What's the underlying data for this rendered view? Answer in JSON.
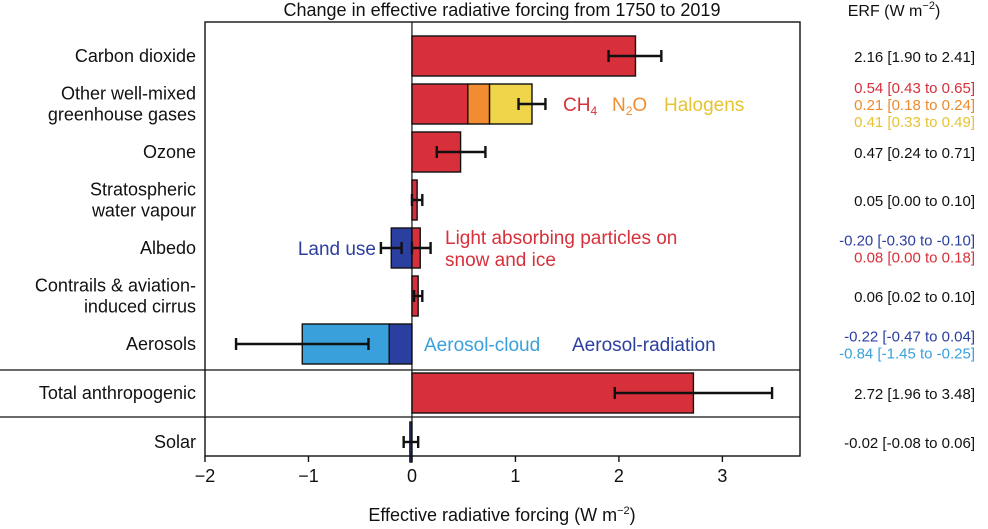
{
  "chart_data": {
    "type": "bar",
    "orientation": "horizontal",
    "title": "Change in effective radiative forcing from 1750 to 2019",
    "xlabel": "Effective radiative forcing (W m",
    "xlabel_sup": "−2",
    "xlabel_close": ")",
    "value_header": "ERF (W m",
    "value_header_sup": "−2",
    "value_header_close": ")",
    "xlim": [
      -2,
      3.75
    ],
    "xticks": [
      -2,
      -1,
      0,
      1,
      2,
      3
    ],
    "xtick_labels": [
      "−2",
      "−1",
      "0",
      "1",
      "2",
      "3"
    ],
    "categories": [
      {
        "name": "carbon-dioxide",
        "label_lines": [
          "Carbon dioxide"
        ],
        "segments": [
          {
            "start": 0,
            "end": 2.16,
            "color": "#d7303a"
          }
        ],
        "error": {
          "center": 2.16,
          "low": 1.9,
          "high": 2.41
        },
        "values": [
          {
            "text": "2.16 [1.90 to 2.41]",
            "color": "#111111"
          }
        ]
      },
      {
        "name": "other-ghg",
        "label_lines": [
          "Other well-mixed",
          "greenhouse gases"
        ],
        "segments": [
          {
            "start": 0,
            "end": 0.54,
            "color": "#d7303a"
          },
          {
            "start": 0.54,
            "end": 0.75,
            "color": "#f28c30"
          },
          {
            "start": 0.75,
            "end": 1.16,
            "color": "#f0d44a"
          }
        ],
        "error": {
          "center": 1.16,
          "low": 1.03,
          "high": 1.29
        },
        "values": [
          {
            "text": "0.54 [0.43 to 0.65]",
            "color": "#d7303a"
          },
          {
            "text": "0.21 [0.18 to 0.24]",
            "color": "#ee8a2c"
          },
          {
            "text": "0.41 [0.33 to 0.49]",
            "color": "#e6c333"
          }
        ]
      },
      {
        "name": "ozone",
        "label_lines": [
          "Ozone"
        ],
        "segments": [
          {
            "start": 0,
            "end": 0.47,
            "color": "#d7303a"
          }
        ],
        "error": {
          "center": 0.47,
          "low": 0.24,
          "high": 0.71
        },
        "values": [
          {
            "text": "0.47 [0.24 to 0.71]",
            "color": "#111111"
          }
        ]
      },
      {
        "name": "stratospheric-water-vapour",
        "label_lines": [
          "Stratospheric",
          "water vapour"
        ],
        "segments": [
          {
            "start": 0,
            "end": 0.05,
            "color": "#d7303a"
          }
        ],
        "error": {
          "center": 0.05,
          "low": 0.0,
          "high": 0.1
        },
        "values": [
          {
            "text": "0.05 [0.00 to 0.10]",
            "color": "#111111"
          }
        ]
      },
      {
        "name": "albedo",
        "label_lines": [
          "Albedo"
        ],
        "segments": [
          {
            "start": -0.2,
            "end": 0,
            "color": "#2b3fa0"
          },
          {
            "start": 0,
            "end": 0.08,
            "color": "#d7303a"
          }
        ],
        "error_bars": [
          {
            "center": -0.2,
            "low": -0.3,
            "high": -0.1
          },
          {
            "center": 0.08,
            "low": 0.0,
            "high": 0.18
          }
        ],
        "values": [
          {
            "text": "-0.20 [-0.30 to -0.10]",
            "color": "#2b3fa0"
          },
          {
            "text": "0.08 [0.00 to 0.18]",
            "color": "#d7303a"
          }
        ]
      },
      {
        "name": "contrails",
        "label_lines": [
          "Contrails & aviation-",
          "induced cirrus"
        ],
        "segments": [
          {
            "start": 0,
            "end": 0.06,
            "color": "#d7303a"
          }
        ],
        "error": {
          "center": 0.06,
          "low": 0.02,
          "high": 0.1
        },
        "values": [
          {
            "text": "0.06 [0.02 to 0.10]",
            "color": "#111111"
          }
        ]
      },
      {
        "name": "aerosols",
        "label_lines": [
          "Aerosols"
        ],
        "segments": [
          {
            "start": -0.22,
            "end": 0,
            "color": "#2b3fa0"
          },
          {
            "start": -1.06,
            "end": -0.22,
            "color": "#39a0dc"
          }
        ],
        "error_bars": [
          {
            "center": -1.06,
            "low": -1.7,
            "high": -0.42
          }
        ],
        "values": [
          {
            "text": "-0.22 [-0.47 to 0.04]",
            "color": "#2b3fa0"
          },
          {
            "text": "-0.84 [-1.45 to -0.25]",
            "color": "#39a0dc"
          }
        ]
      },
      {
        "name": "total-anthropogenic",
        "label_lines": [
          "Total anthropogenic"
        ],
        "segments": [
          {
            "start": 0,
            "end": 2.72,
            "color": "#d7303a"
          }
        ],
        "error": {
          "center": 2.72,
          "low": 1.96,
          "high": 3.48
        },
        "values": [
          {
            "text": "2.72 [1.96 to 3.48]",
            "color": "#111111"
          }
        ]
      },
      {
        "name": "solar",
        "label_lines": [
          "Solar"
        ],
        "segments": [
          {
            "start": -0.02,
            "end": 0,
            "color": "#2b3fa0"
          }
        ],
        "error": {
          "center": -0.02,
          "low": -0.08,
          "high": 0.06
        },
        "values": [
          {
            "text": "-0.02 [-0.08 to 0.06]",
            "color": "#111111"
          }
        ]
      }
    ],
    "annotations": [
      {
        "name": "ch4-label",
        "base": "CH",
        "sub": "4",
        "color": "#d7303a"
      },
      {
        "name": "n2o-label",
        "base": "N",
        "sub": "2",
        "tail": "O",
        "color": "#f28c30"
      },
      {
        "name": "halogens-label",
        "text": "Halogens",
        "color": "#e6c333"
      },
      {
        "name": "land-use-label",
        "text": "Land use",
        "color": "#2b3fa0"
      },
      {
        "name": "lap-label",
        "lines": [
          "Light absorbing particles on",
          "snow and ice"
        ],
        "color": "#d7303a"
      },
      {
        "name": "aerosol-cloud-label",
        "text": "Aerosol-cloud",
        "color": "#39a0dc"
      },
      {
        "name": "aerosol-radiation-label",
        "text": "Aerosol-radiation",
        "color": "#2b3fa0"
      }
    ]
  }
}
